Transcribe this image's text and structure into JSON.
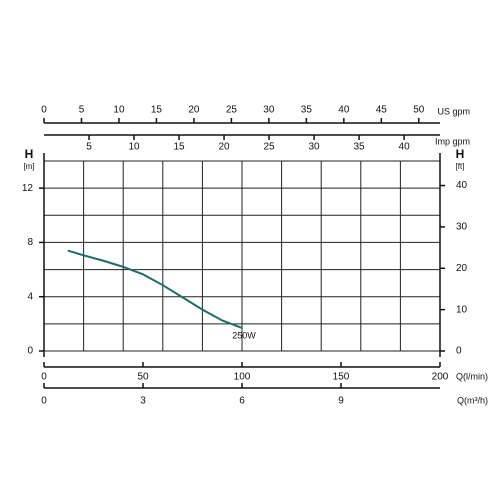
{
  "chart_data": {
    "type": "line",
    "x": [
      12,
      20,
      30,
      40,
      50,
      60,
      70,
      80,
      90,
      100
    ],
    "series": [
      {
        "name": "250W",
        "color": "#1d6e6a",
        "values": [
          7.4,
          7.05,
          6.65,
          6.2,
          5.65,
          4.85,
          3.95,
          3.05,
          2.25,
          1.7
        ]
      }
    ],
    "xlabel": "Q(l/min)",
    "xlim": [
      0,
      200
    ],
    "xticks": [
      0,
      50,
      100,
      150,
      200
    ],
    "xgrid": [
      0,
      20,
      40,
      60,
      80,
      100,
      120,
      140,
      160,
      180,
      200
    ],
    "ylabel": "H",
    "yunit": "[m]",
    "ylim": [
      0,
      14
    ],
    "yticks": [
      0,
      4,
      8,
      12
    ],
    "ygrid": [
      0,
      2,
      4,
      6,
      8,
      10,
      12,
      14
    ],
    "y2label": "H",
    "y2unit": "[ft]",
    "y2lim": [
      0,
      45.93
    ],
    "y2ticks": [
      0,
      10,
      20,
      30,
      40
    ],
    "extra_x_axes": [
      {
        "label": "US gpm",
        "lim": [
          0,
          52.83
        ],
        "ticks": [
          0,
          5,
          10,
          15,
          20,
          25,
          30,
          35,
          40,
          45,
          50
        ]
      },
      {
        "label": "Imp gpm",
        "lim": [
          0,
          43.99
        ],
        "ticks": [
          5,
          10,
          15,
          20,
          25,
          30,
          35,
          40
        ]
      },
      {
        "label": "Q(m³/h)",
        "lim": [
          0,
          12
        ],
        "ticks": [
          0,
          3,
          6,
          9
        ]
      }
    ],
    "grid": true
  }
}
